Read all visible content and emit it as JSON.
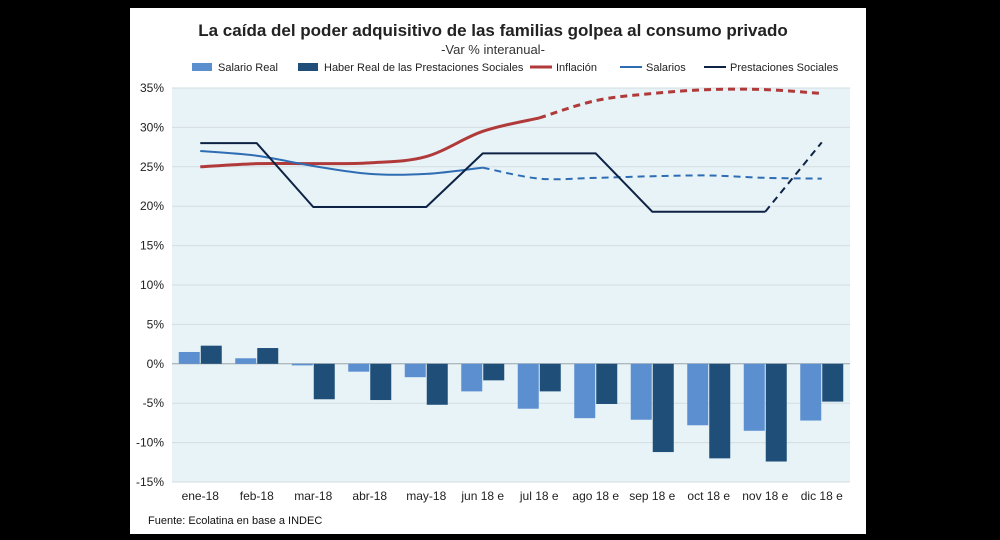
{
  "chart_data": {
    "type": "bar",
    "title": "La caída del poder adquisitivo de las familias golpea al consumo privado",
    "subtitle": "-Var % interanual-",
    "source": "Fuente: Ecolatina en base a INDEC",
    "categories": [
      "ene-18",
      "feb-18",
      "mar-18",
      "abr-18",
      "may-18",
      "jun 18 e",
      "jul 18 e",
      "ago 18 e",
      "sep 18 e",
      "oct 18 e",
      "nov 18 e",
      "dic 18 e"
    ],
    "ylim": [
      -15,
      35
    ],
    "yticks": [
      -15,
      -10,
      -5,
      0,
      5,
      10,
      15,
      20,
      25,
      30,
      35
    ],
    "ytick_labels": [
      "-15%",
      "-10%",
      "-5%",
      "0%",
      "5%",
      "10%",
      "15%",
      "20%",
      "25%",
      "30%",
      "35%"
    ],
    "negative_tick_color": "#c00000",
    "plot_background": "#e8f3f7",
    "bar_series": [
      {
        "name": "Salario Real",
        "color": "#5b8fd0",
        "values": [
          1.5,
          0.7,
          -0.2,
          -1.0,
          -1.7,
          -3.5,
          -5.7,
          -6.9,
          -7.1,
          -7.8,
          -8.5,
          -7.2
        ]
      },
      {
        "name": "Haber Real de las Prestaciones Sociales",
        "color": "#1f4e79",
        "values": [
          2.3,
          2.0,
          -4.5,
          -4.6,
          -5.2,
          -2.1,
          -3.5,
          -5.1,
          -11.2,
          -12.0,
          -12.4,
          -4.8
        ]
      }
    ],
    "line_series": [
      {
        "name": "Inflación",
        "color": "#b03a3a",
        "values": [
          25.0,
          25.4,
          25.4,
          25.5,
          26.3,
          29.5,
          31.2,
          33.4,
          34.3,
          34.8,
          34.8,
          34.3
        ],
        "dashed_from": 6
      },
      {
        "name": "Salarios",
        "color": "#2e6db4",
        "values": [
          27.0,
          26.4,
          25.1,
          24.1,
          24.1,
          24.9,
          23.5,
          23.6,
          23.8,
          23.9,
          23.6,
          23.5
        ],
        "dashed_from": 5
      },
      {
        "name": "Prestaciones Sociales",
        "color": "#0d2245",
        "values": [
          28.0,
          28.0,
          19.9,
          19.9,
          19.9,
          26.7,
          26.7,
          26.7,
          19.3,
          19.3,
          19.3,
          28.1
        ],
        "dashed_from": 10
      }
    ]
  }
}
